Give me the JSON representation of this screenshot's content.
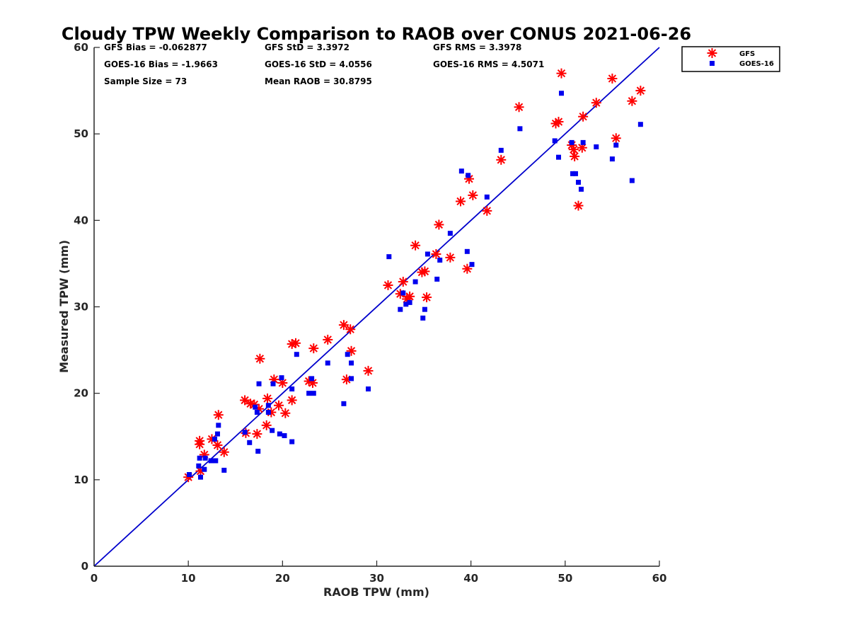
{
  "chart_data": {
    "type": "scatter",
    "title": "Cloudy TPW Weekly Comparison to RAOB over CONUS 2021-06-26",
    "xlabel": "RAOB TPW (mm)",
    "ylabel": "Measured TPW (mm)",
    "xlim": [
      0,
      60
    ],
    "ylim": [
      0,
      60
    ],
    "xticks": [
      0,
      10,
      20,
      30,
      40,
      50,
      60
    ],
    "yticks": [
      0,
      10,
      20,
      30,
      40,
      50,
      60
    ],
    "grid": false,
    "legend_position": "outside-top-right",
    "one_to_one_line": {
      "from": [
        0,
        0
      ],
      "to": [
        60,
        60
      ],
      "color": "#0000cc"
    },
    "stats": {
      "gfs_bias": "GFS Bias = -0.062877",
      "goes_bias": "GOES-16 Bias = -1.9663",
      "sample_size": "Sample Size = 73",
      "gfs_std": "GFS StD = 3.3972",
      "goes_std": "GOES-16 StD = 4.0556",
      "mean_raob": "Mean RAOB = 30.8795",
      "gfs_rms": "GFS RMS = 3.3978",
      "goes_rms": "GOES-16 RMS = 4.5071"
    },
    "series": [
      {
        "name": "GFS",
        "marker": "asterisk",
        "color": "#ff0000",
        "points": [
          [
            10,
            10.3
          ],
          [
            11.2,
            14.5
          ],
          [
            11.2,
            14.1
          ],
          [
            11.3,
            11.0
          ],
          [
            11.7,
            12.9
          ],
          [
            12.5,
            14.7
          ],
          [
            13.2,
            17.5
          ],
          [
            13.1,
            14.0
          ],
          [
            13.8,
            13.2
          ],
          [
            16.0,
            19.2
          ],
          [
            16.1,
            15.4
          ],
          [
            16.6,
            18.8
          ],
          [
            17.0,
            18.7
          ],
          [
            17.3,
            15.3
          ],
          [
            17.5,
            18.2
          ],
          [
            17.6,
            24.0
          ],
          [
            18.3,
            16.3
          ],
          [
            18.4,
            19.4
          ],
          [
            18.8,
            17.8
          ],
          [
            19.1,
            21.6
          ],
          [
            19.6,
            18.6
          ],
          [
            20.0,
            21.2
          ],
          [
            20.3,
            17.7
          ],
          [
            21.0,
            19.2
          ],
          [
            21.0,
            25.7
          ],
          [
            21.4,
            25.8
          ],
          [
            22.8,
            21.4
          ],
          [
            23.2,
            21.2
          ],
          [
            23.3,
            25.2
          ],
          [
            24.8,
            26.2
          ],
          [
            26.5,
            27.9
          ],
          [
            27.2,
            27.4
          ],
          [
            26.8,
            21.6
          ],
          [
            27.3,
            24.9
          ],
          [
            29.1,
            22.6
          ],
          [
            31.2,
            32.5
          ],
          [
            32.5,
            31.5
          ],
          [
            32.8,
            32.9
          ],
          [
            33.2,
            30.9
          ],
          [
            33.5,
            31.2
          ],
          [
            34.1,
            37.1
          ],
          [
            34.8,
            34.0
          ],
          [
            35.1,
            34.1
          ],
          [
            35.3,
            31.1
          ],
          [
            36.6,
            39.5
          ],
          [
            36.3,
            36.1
          ],
          [
            37.8,
            35.7
          ],
          [
            38.9,
            42.2
          ],
          [
            39.6,
            34.4
          ],
          [
            39.8,
            44.8
          ],
          [
            40.2,
            42.9
          ],
          [
            41.7,
            41.1
          ],
          [
            43.2,
            47.0
          ],
          [
            45.1,
            53.1
          ],
          [
            49.0,
            51.2
          ],
          [
            49.3,
            51.4
          ],
          [
            49.6,
            57.0
          ],
          [
            50.7,
            48.7
          ],
          [
            50.9,
            48.2
          ],
          [
            51.0,
            47.4
          ],
          [
            51.4,
            41.7
          ],
          [
            51.8,
            48.4
          ],
          [
            51.9,
            52.0
          ],
          [
            53.3,
            53.6
          ],
          [
            55.0,
            56.4
          ],
          [
            55.4,
            49.5
          ],
          [
            57.1,
            53.8
          ],
          [
            58.0,
            55.0
          ]
        ]
      },
      {
        "name": "GOES-16",
        "marker": "square",
        "color": "#0000ee",
        "points": [
          [
            10.1,
            10.6
          ],
          [
            11.1,
            11.6
          ],
          [
            11.2,
            12.5
          ],
          [
            11.3,
            10.3
          ],
          [
            11.7,
            11.2
          ],
          [
            11.8,
            12.5
          ],
          [
            12.4,
            12.2
          ],
          [
            12.9,
            12.2
          ],
          [
            12.8,
            14.7
          ],
          [
            13.1,
            15.3
          ],
          [
            13.2,
            16.3
          ],
          [
            13.8,
            11.1
          ],
          [
            16.0,
            15.5
          ],
          [
            16.5,
            14.3
          ],
          [
            17.1,
            18.4
          ],
          [
            17.3,
            17.8
          ],
          [
            17.4,
            13.3
          ],
          [
            17.5,
            21.1
          ],
          [
            18.5,
            18.6
          ],
          [
            18.5,
            17.8
          ],
          [
            18.9,
            15.7
          ],
          [
            19.0,
            21.1
          ],
          [
            19.7,
            15.3
          ],
          [
            19.9,
            21.8
          ],
          [
            20.2,
            15.1
          ],
          [
            21.0,
            20.5
          ],
          [
            21.0,
            14.4
          ],
          [
            21.5,
            24.5
          ],
          [
            22.8,
            20.0
          ],
          [
            23.1,
            21.7
          ],
          [
            23.3,
            20.0
          ],
          [
            24.8,
            23.5
          ],
          [
            26.5,
            18.8
          ],
          [
            26.9,
            24.5
          ],
          [
            27.3,
            23.5
          ],
          [
            27.3,
            21.7
          ],
          [
            29.1,
            20.5
          ],
          [
            31.3,
            35.8
          ],
          [
            32.5,
            29.7
          ],
          [
            32.8,
            31.6
          ],
          [
            33.1,
            30.3
          ],
          [
            33.5,
            30.5
          ],
          [
            34.1,
            32.9
          ],
          [
            34.9,
            28.7
          ],
          [
            35.1,
            29.7
          ],
          [
            35.4,
            36.1
          ],
          [
            36.4,
            33.2
          ],
          [
            36.7,
            35.4
          ],
          [
            37.8,
            38.5
          ],
          [
            39.0,
            45.7
          ],
          [
            39.6,
            36.4
          ],
          [
            39.7,
            45.2
          ],
          [
            40.1,
            34.9
          ],
          [
            41.7,
            42.7
          ],
          [
            43.2,
            48.1
          ],
          [
            45.2,
            50.6
          ],
          [
            48.9,
            49.2
          ],
          [
            49.3,
            47.3
          ],
          [
            49.6,
            54.7
          ],
          [
            50.7,
            49.0
          ],
          [
            50.8,
            45.4
          ],
          [
            51.1,
            45.4
          ],
          [
            51.4,
            44.4
          ],
          [
            51.7,
            43.6
          ],
          [
            51.9,
            49.0
          ],
          [
            53.3,
            48.5
          ],
          [
            55.0,
            47.1
          ],
          [
            55.4,
            48.7
          ],
          [
            57.1,
            44.6
          ],
          [
            58.0,
            51.1
          ]
        ]
      }
    ]
  }
}
